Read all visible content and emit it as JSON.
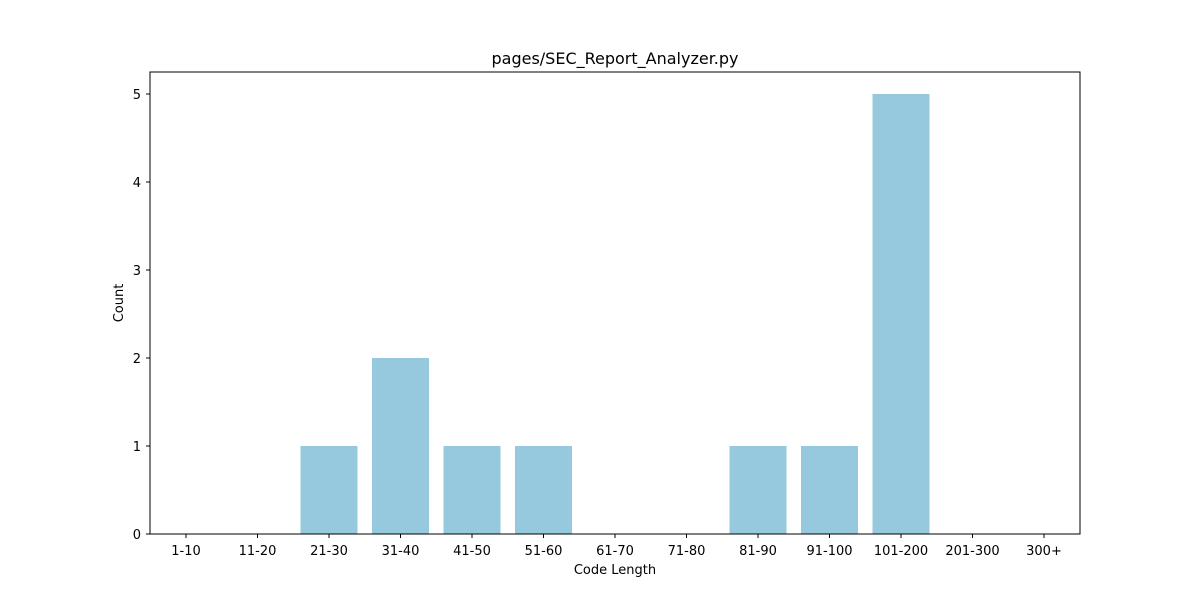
{
  "chart_data": {
    "type": "bar",
    "title": "pages/SEC_Report_Analyzer.py",
    "xlabel": "Code Length",
    "ylabel": "Count",
    "categories": [
      "1-10",
      "11-20",
      "21-30",
      "31-40",
      "41-50",
      "51-60",
      "61-70",
      "71-80",
      "81-90",
      "91-100",
      "101-200",
      "201-300",
      "300+"
    ],
    "values": [
      0,
      0,
      1,
      2,
      1,
      1,
      0,
      0,
      1,
      1,
      5,
      0,
      0
    ],
    "ylim": [
      0,
      5.25
    ],
    "yticks": [
      0,
      1,
      2,
      3,
      4,
      5
    ],
    "bar_color": "#96c9dd",
    "grid": false,
    "legend": "none"
  }
}
